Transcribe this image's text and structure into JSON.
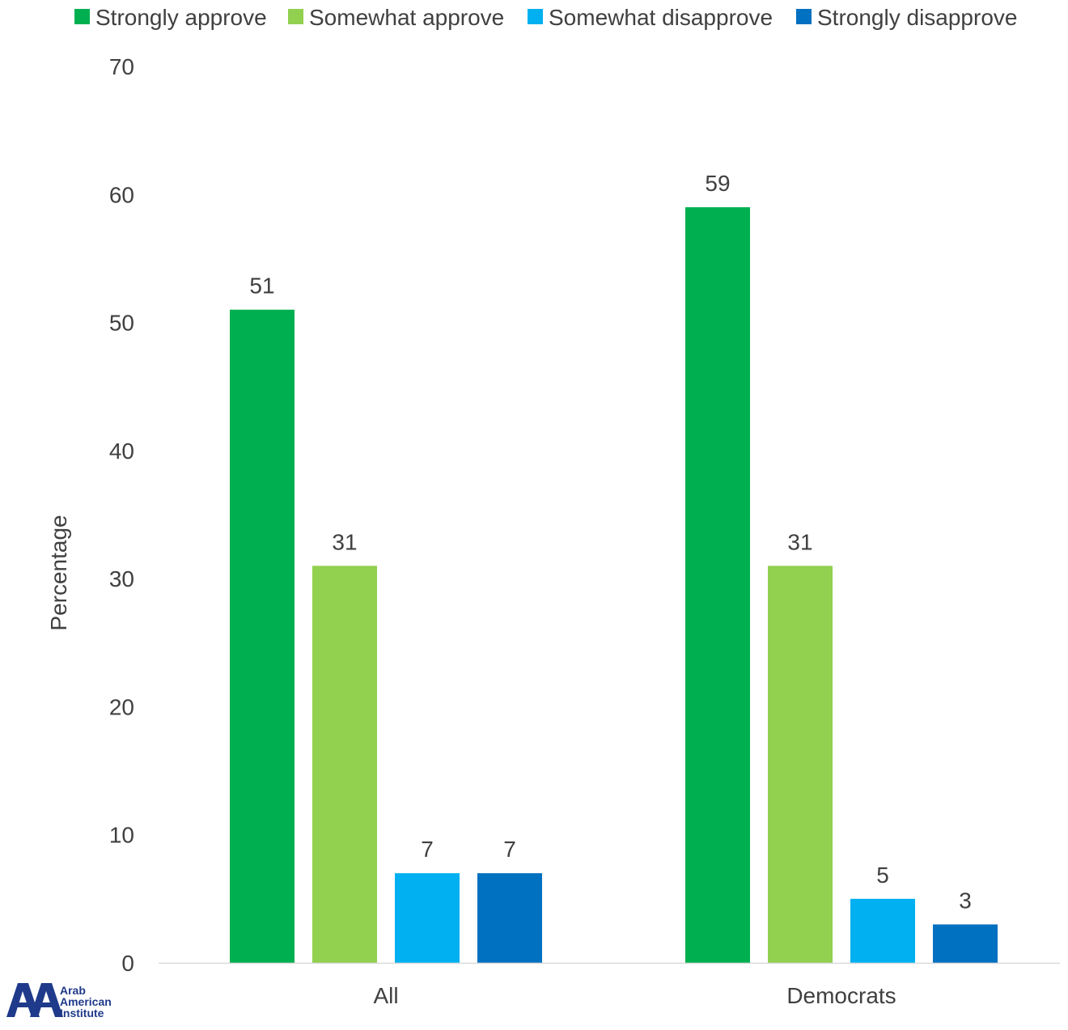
{
  "chart_data": {
    "type": "bar",
    "categories": [
      "All",
      "Democrats"
    ],
    "series": [
      {
        "name": "Strongly approve",
        "color": "#00B050",
        "values": [
          51,
          59
        ]
      },
      {
        "name": "Somewhat approve",
        "color": "#92D050",
        "values": [
          31,
          31
        ]
      },
      {
        "name": "Somewhat disapprove",
        "color": "#00B0F0",
        "values": [
          7,
          5
        ]
      },
      {
        "name": "Strongly disapprove",
        "color": "#0070C0",
        "values": [
          7,
          3
        ]
      }
    ],
    "ylabel": "Percentage",
    "ylim": [
      0,
      70
    ],
    "yticks": [
      0,
      10,
      20,
      30,
      40,
      50,
      60,
      70
    ],
    "grid": false,
    "legend_position": "top",
    "data_labels": true
  },
  "logo": {
    "name": "Arab American Institute",
    "mark": "AAI",
    "color": "#1F3A8A"
  }
}
